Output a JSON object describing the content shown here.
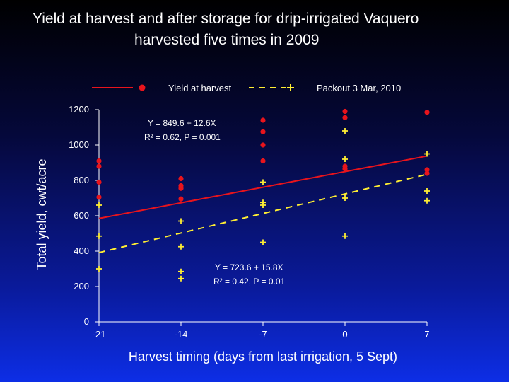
{
  "chart_data": {
    "type": "scatter",
    "title": "Yield at harvest and after storage for drip-irrigated Vaquero harvested five times in 2009",
    "title_line1": "Yield at harvest and after storage for drip-irrigated Vaquero",
    "title_line2": "harvested five times in 2009",
    "xlabel": "Harvest timing (days from last irrigation, 5 Sept)",
    "ylabel": "Total yield, cwt/acre",
    "xlim": [
      -21,
      7
    ],
    "ylim": [
      0,
      1200
    ],
    "xticks": [
      -21,
      -14,
      -7,
      0,
      7
    ],
    "yticks": [
      0,
      200,
      400,
      600,
      800,
      1000,
      1200
    ],
    "grid": false,
    "legend_position": "top",
    "colors": {
      "harvest": "#e8141c",
      "packout": "#ffee33",
      "axis": "#ffffff"
    },
    "series": [
      {
        "name": "Yield at harvest",
        "marker": "circle",
        "points": [
          [
            -21,
            910
          ],
          [
            -21,
            880
          ],
          [
            -21,
            790
          ],
          [
            -21,
            705
          ],
          [
            -14,
            810
          ],
          [
            -14,
            770
          ],
          [
            -14,
            755
          ],
          [
            -14,
            695
          ],
          [
            -7,
            1140
          ],
          [
            -7,
            1075
          ],
          [
            -7,
            1000
          ],
          [
            -7,
            910
          ],
          [
            0,
            1190
          ],
          [
            0,
            1155
          ],
          [
            0,
            880
          ],
          [
            0,
            865
          ],
          [
            7,
            1185
          ],
          [
            7,
            860
          ],
          [
            7,
            840
          ]
        ],
        "fit": {
          "intercept": 849.6,
          "slope": 12.6,
          "eq_label": "Y = 849.6 + 12.6X",
          "r2_label": "R² = 0.62, P = 0.001",
          "style": "solid"
        }
      },
      {
        "name": "Packout 3 Mar, 2010",
        "marker": "plus",
        "points": [
          [
            -21,
            660
          ],
          [
            -21,
            485
          ],
          [
            -21,
            300
          ],
          [
            -14,
            570
          ],
          [
            -14,
            425
          ],
          [
            -14,
            285
          ],
          [
            -14,
            245
          ],
          [
            -7,
            790
          ],
          [
            -7,
            675
          ],
          [
            -7,
            660
          ],
          [
            -7,
            450
          ],
          [
            0,
            1080
          ],
          [
            0,
            920
          ],
          [
            0,
            700
          ],
          [
            0,
            485
          ],
          [
            7,
            950
          ],
          [
            7,
            740
          ],
          [
            7,
            685
          ]
        ],
        "fit": {
          "intercept": 723.6,
          "slope": 15.8,
          "eq_label": "Y = 723.6 + 15.8X",
          "r2_label": "R² = 0.42, P = 0.01",
          "style": "dashed"
        }
      }
    ]
  }
}
